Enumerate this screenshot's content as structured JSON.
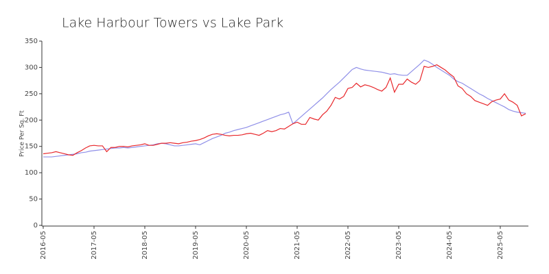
{
  "chart_data": {
    "type": "line",
    "title": "Lake Harbour Towers vs Lake Park",
    "y_label": "Price Per Sq. Ft",
    "categories": [
      "2016-05",
      null,
      null,
      null,
      null,
      null,
      null,
      null,
      null,
      null,
      null,
      null,
      "2017-05",
      null,
      null,
      null,
      null,
      null,
      null,
      null,
      null,
      null,
      null,
      null,
      "2018-05",
      null,
      null,
      null,
      null,
      null,
      null,
      null,
      null,
      null,
      null,
      null,
      "2019-05",
      null,
      null,
      null,
      null,
      null,
      null,
      null,
      null,
      null,
      null,
      null,
      "2020-05",
      null,
      null,
      null,
      null,
      null,
      null,
      null,
      null,
      null,
      null,
      null,
      "2021-05",
      null,
      null,
      null,
      null,
      null,
      null,
      null,
      null,
      null,
      null,
      null,
      "2022-05",
      null,
      null,
      null,
      null,
      null,
      null,
      null,
      null,
      null,
      null,
      null,
      "2023-05",
      null,
      null,
      null,
      null,
      null,
      null,
      null,
      null,
      null,
      null,
      null,
      "2024-05",
      null,
      null,
      null,
      null,
      null,
      null,
      null,
      null,
      null,
      null,
      null,
      "2025-05",
      null,
      null,
      null,
      null,
      null,
      null
    ],
    "series": [
      {
        "color": "#8f8fe8",
        "values": [
          130,
          130,
          130,
          131,
          132,
          133,
          134,
          135,
          136,
          138,
          139,
          141,
          142,
          143,
          144,
          145,
          146,
          147,
          147,
          148,
          147,
          148,
          149,
          150,
          151,
          152,
          153,
          155,
          156,
          155,
          153,
          151,
          151,
          152,
          153,
          154,
          155,
          153,
          157,
          161,
          165,
          168,
          171,
          175,
          177,
          180,
          182,
          184,
          186,
          189,
          192,
          195,
          198,
          201,
          204,
          207,
          210,
          212,
          215,
          193,
          200,
          207,
          214,
          221,
          228,
          235,
          242,
          250,
          258,
          265,
          272,
          280,
          288,
          296,
          300,
          297,
          295,
          294,
          293,
          292,
          291,
          289,
          287,
          288,
          286,
          285,
          285,
          292,
          299,
          306,
          314,
          311,
          306,
          300,
          295,
          290,
          285,
          278,
          273,
          270,
          265,
          260,
          255,
          250,
          246,
          241,
          237,
          233,
          229,
          225,
          220,
          217,
          215,
          214,
          213
        ]
      },
      {
        "color": "#e8262a",
        "values": [
          136,
          137,
          138,
          140,
          138,
          136,
          134,
          133,
          138,
          142,
          147,
          151,
          152,
          151,
          151,
          140,
          148,
          148,
          150,
          150,
          149,
          151,
          152,
          153,
          155,
          152,
          152,
          154,
          156,
          156,
          157,
          156,
          155,
          157,
          158,
          160,
          161,
          163,
          166,
          170,
          173,
          174,
          173,
          171,
          170,
          171,
          171,
          172,
          174,
          175,
          173,
          171,
          175,
          180,
          178,
          180,
          184,
          183,
          188,
          193,
          196,
          192,
          192,
          205,
          202,
          200,
          210,
          217,
          228,
          243,
          240,
          245,
          260,
          262,
          270,
          263,
          267,
          265,
          262,
          258,
          255,
          262,
          280,
          253,
          268,
          268,
          278,
          272,
          268,
          275,
          302,
          300,
          302,
          305,
          300,
          295,
          288,
          282,
          265,
          260,
          250,
          245,
          237,
          234,
          231,
          228,
          235,
          238,
          240,
          250,
          238,
          234,
          228,
          208,
          212
        ]
      }
    ],
    "ylim": [
      0,
      350
    ],
    "yticks": [
      0,
      50,
      100,
      150,
      200,
      250,
      300,
      350
    ]
  }
}
